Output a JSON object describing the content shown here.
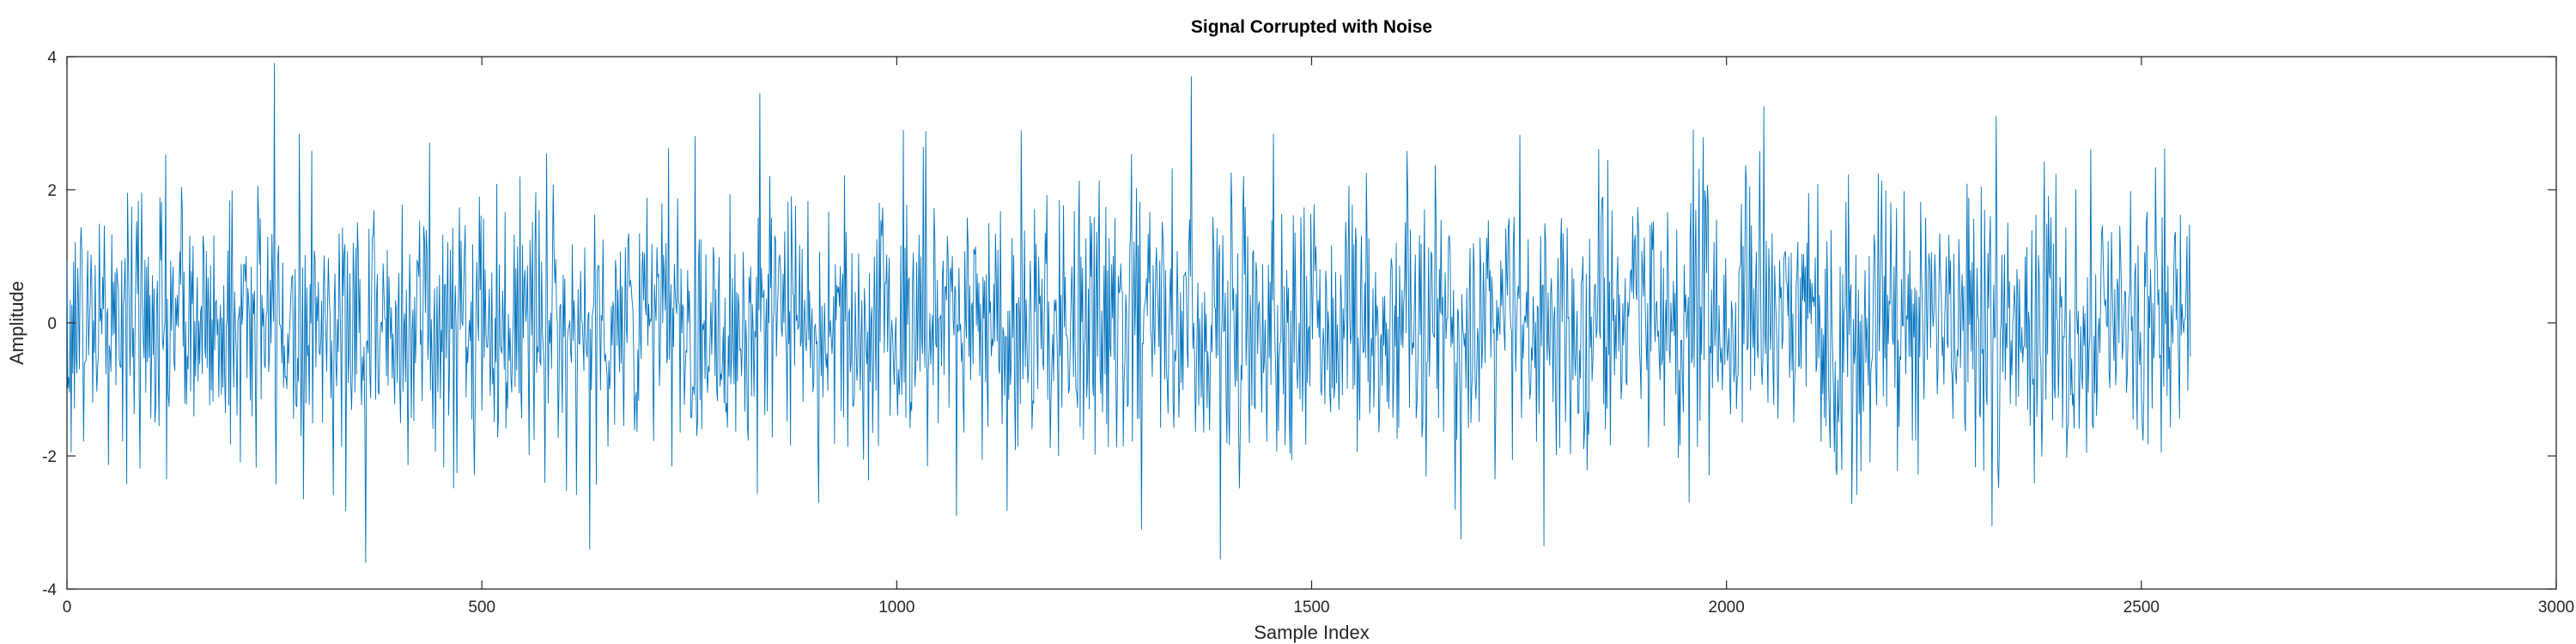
{
  "chart_data": {
    "type": "line",
    "title": "Signal Corrupted with Noise",
    "xlabel": "Sample Index",
    "ylabel": "Amplitude",
    "xlim": [
      0,
      3000
    ],
    "ylim": [
      -4,
      4
    ],
    "xticks": [
      0,
      500,
      1000,
      1500,
      2000,
      2500,
      3000
    ],
    "yticks": [
      -4,
      -2,
      0,
      2,
      4
    ],
    "grid": false,
    "legend": "none",
    "line_color": "#0072BD",
    "sample_count": 2560,
    "noise_std": 1.0,
    "notable_points": [
      {
        "x": 250,
        "y": 3.9
      },
      {
        "x": 360,
        "y": -3.6
      },
      {
        "x": 630,
        "y": -3.4
      },
      {
        "x": 835,
        "y": 3.45
      },
      {
        "x": 1295,
        "y": -3.1
      },
      {
        "x": 1355,
        "y": 3.7
      },
      {
        "x": 1390,
        "y": -3.55
      },
      {
        "x": 1680,
        "y": -3.25
      },
      {
        "x": 1780,
        "y": -3.35
      },
      {
        "x": 2045,
        "y": 3.25
      },
      {
        "x": 2325,
        "y": 3.1
      },
      {
        "x": 2320,
        "y": -3.05
      },
      {
        "x": 2555,
        "y": 1.3
      }
    ]
  }
}
